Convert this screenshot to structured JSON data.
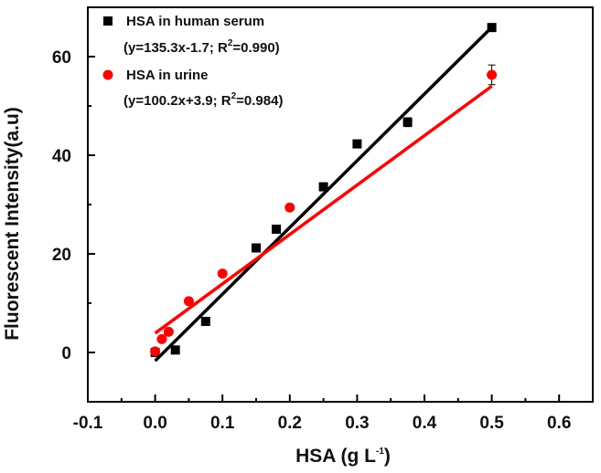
{
  "chart_data": {
    "type": "scatter",
    "xlabel": "HSA (g L",
    "xlabel_sup": "-1",
    "xlabel_end": ")",
    "ylabel": "Fluorescent Intensity(a.u)",
    "xlim": [
      -0.1,
      0.65
    ],
    "ylim": [
      -10,
      70
    ],
    "xticks": [
      -0.1,
      0.0,
      0.1,
      0.2,
      0.3,
      0.4,
      0.5,
      0.6
    ],
    "xtick_labels": [
      "-0.1",
      "0.0",
      "0.1",
      "0.2",
      "0.3",
      "0.4",
      "0.5",
      "0.6"
    ],
    "yticks": [
      0,
      20,
      40,
      60
    ],
    "ytick_labels": [
      "0",
      "20",
      "40",
      "60"
    ],
    "grid": false,
    "legend_position": "top-left",
    "series": [
      {
        "name": "HSA in human serum",
        "marker": "square",
        "color": "#000000",
        "equation_prefix": "(y=135.3x-1.7; R",
        "equation_sup": "2",
        "equation_suffix": "=0.990)",
        "fit": {
          "slope": 135.3,
          "intercept": -1.7
        },
        "points": [
          {
            "x": 0.0,
            "y": 0.0,
            "err": 0.3
          },
          {
            "x": 0.03,
            "y": 0.5,
            "err": 0.3
          },
          {
            "x": 0.075,
            "y": 6.3,
            "err": 0.4
          },
          {
            "x": 0.15,
            "y": 21.2,
            "err": 0.4
          },
          {
            "x": 0.18,
            "y": 25.0,
            "err": 0.4
          },
          {
            "x": 0.25,
            "y": 33.6,
            "err": 0.5
          },
          {
            "x": 0.3,
            "y": 42.3,
            "err": 0.6
          },
          {
            "x": 0.375,
            "y": 46.7,
            "err": 0.9
          },
          {
            "x": 0.5,
            "y": 65.9,
            "err": 0.5
          }
        ]
      },
      {
        "name": "HSA in urine",
        "marker": "circle",
        "color": "#ff0000",
        "equation_prefix": "(y=100.2x+3.9; R",
        "equation_sup": "2",
        "equation_suffix": "=0.984)",
        "fit": {
          "slope": 100.2,
          "intercept": 3.9
        },
        "points": [
          {
            "x": 0.0,
            "y": 0.2,
            "err": 0.3
          },
          {
            "x": 0.01,
            "y": 2.7,
            "err": 0.4
          },
          {
            "x": 0.02,
            "y": 4.2,
            "err": 0.4
          },
          {
            "x": 0.05,
            "y": 10.4,
            "err": 0.5
          },
          {
            "x": 0.1,
            "y": 16.0,
            "err": 0.5
          },
          {
            "x": 0.2,
            "y": 29.4,
            "err": 0.5
          },
          {
            "x": 0.5,
            "y": 56.3,
            "err": 2.0
          }
        ]
      }
    ]
  }
}
